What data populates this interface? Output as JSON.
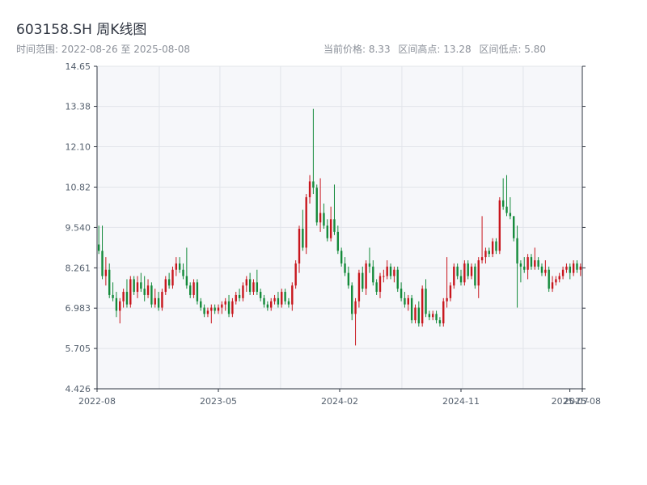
{
  "header": {
    "title": "603158.SH 周K线图",
    "range_text": "时间范围: 2022-08-26 至 2025-08-08",
    "current_price": "当前价格: 8.33",
    "range_high": "区间高点: 13.28",
    "range_low": "区间低点: 5.80"
  },
  "colors": {
    "up": "#c8161d",
    "down": "#138a3a",
    "plot_bg": "#f6f7fa",
    "grid": "#e1e4ea",
    "axis": "#2e3440"
  },
  "chart_data": {
    "type": "candlestick",
    "title": "603158.SH 周K线图",
    "xlabel": "",
    "ylabel": "",
    "ylim": [
      4.426,
      14.65
    ],
    "y_ticks": [
      "4.426",
      "5.705",
      "6.983",
      "8.261",
      "9.540",
      "10.82",
      "12.10",
      "13.38",
      "14.65"
    ],
    "x_ticks": [
      "2022-08",
      "2023-05",
      "2024-02",
      "2024-11",
      "2025-07",
      "2025-08"
    ],
    "x_tick_weeks": [
      0,
      39,
      78,
      117,
      152,
      156
    ],
    "grid": true,
    "start_date": "2022-08-26",
    "end_date": "2025-08-08",
    "summary": {
      "current": 8.33,
      "high": 13.28,
      "low": 5.8
    },
    "candles": [
      [
        9.0,
        9.6,
        8.7,
        8.8
      ],
      [
        8.8,
        9.6,
        7.9,
        8.0
      ],
      [
        8.0,
        8.6,
        7.7,
        8.2
      ],
      [
        8.2,
        8.4,
        7.3,
        7.4
      ],
      [
        7.4,
        7.8,
        7.2,
        7.3
      ],
      [
        7.3,
        7.5,
        6.7,
        6.9
      ],
      [
        6.9,
        7.3,
        6.5,
        7.2
      ],
      [
        7.2,
        7.6,
        7.0,
        7.5
      ],
      [
        7.5,
        7.9,
        7.0,
        7.1
      ],
      [
        7.1,
        8.0,
        7.0,
        7.9
      ],
      [
        7.9,
        8.0,
        7.4,
        7.5
      ],
      [
        7.5,
        8.0,
        7.3,
        7.8
      ],
      [
        7.8,
        8.1,
        7.5,
        7.6
      ],
      [
        7.6,
        8.0,
        7.2,
        7.4
      ],
      [
        7.4,
        7.9,
        7.3,
        7.7
      ],
      [
        7.7,
        7.8,
        7.0,
        7.1
      ],
      [
        7.1,
        7.6,
        7.0,
        7.3
      ],
      [
        7.3,
        7.5,
        6.9,
        7.0
      ],
      [
        7.0,
        7.6,
        6.9,
        7.5
      ],
      [
        7.5,
        8.0,
        7.4,
        7.9
      ],
      [
        7.9,
        8.1,
        7.6,
        7.7
      ],
      [
        7.7,
        8.3,
        7.6,
        8.2
      ],
      [
        8.2,
        8.6,
        8.0,
        8.4
      ],
      [
        8.4,
        8.6,
        8.1,
        8.2
      ],
      [
        8.2,
        8.4,
        7.9,
        8.0
      ],
      [
        8.0,
        8.9,
        7.6,
        7.7
      ],
      [
        7.7,
        7.8,
        7.3,
        7.4
      ],
      [
        7.4,
        7.9,
        7.3,
        7.8
      ],
      [
        7.8,
        7.9,
        7.1,
        7.2
      ],
      [
        7.2,
        7.3,
        6.9,
        7.0
      ],
      [
        7.0,
        7.1,
        6.7,
        6.8
      ],
      [
        6.8,
        7.0,
        6.7,
        6.9
      ],
      [
        6.9,
        7.1,
        6.5,
        7.0
      ],
      [
        7.0,
        7.1,
        6.8,
        6.9
      ],
      [
        6.9,
        7.1,
        6.8,
        7.0
      ],
      [
        7.0,
        7.2,
        6.8,
        7.1
      ],
      [
        7.1,
        7.3,
        6.9,
        7.2
      ],
      [
        7.2,
        7.4,
        6.7,
        6.8
      ],
      [
        6.8,
        7.3,
        6.7,
        7.2
      ],
      [
        7.2,
        7.5,
        7.1,
        7.4
      ],
      [
        7.4,
        7.6,
        7.2,
        7.3
      ],
      [
        7.3,
        7.8,
        7.2,
        7.7
      ],
      [
        7.7,
        8.0,
        7.5,
        7.9
      ],
      [
        7.9,
        8.1,
        7.4,
        7.5
      ],
      [
        7.5,
        7.9,
        7.4,
        7.8
      ],
      [
        7.8,
        8.2,
        7.4,
        7.5
      ],
      [
        7.5,
        7.6,
        7.2,
        7.3
      ],
      [
        7.3,
        7.4,
        7.0,
        7.1
      ],
      [
        7.1,
        7.2,
        6.9,
        7.0
      ],
      [
        7.0,
        7.3,
        6.9,
        7.2
      ],
      [
        7.2,
        7.4,
        7.1,
        7.3
      ],
      [
        7.3,
        7.5,
        7.0,
        7.1
      ],
      [
        7.1,
        7.6,
        7.0,
        7.5
      ],
      [
        7.5,
        7.6,
        7.1,
        7.2
      ],
      [
        7.2,
        7.3,
        7.0,
        7.1
      ],
      [
        7.1,
        7.8,
        6.9,
        7.7
      ],
      [
        7.7,
        8.5,
        7.6,
        8.4
      ],
      [
        8.4,
        9.6,
        8.1,
        9.5
      ],
      [
        9.5,
        10.1,
        8.8,
        8.9
      ],
      [
        8.9,
        10.6,
        8.7,
        10.5
      ],
      [
        10.5,
        11.2,
        10.3,
        11.0
      ],
      [
        11.0,
        13.3,
        10.6,
        10.8
      ],
      [
        10.8,
        10.9,
        9.6,
        9.7
      ],
      [
        9.7,
        11.1,
        9.4,
        10.0
      ],
      [
        10.0,
        10.3,
        9.5,
        9.6
      ],
      [
        9.6,
        9.8,
        9.1,
        9.2
      ],
      [
        9.2,
        10.2,
        9.1,
        9.8
      ],
      [
        9.8,
        10.9,
        9.3,
        9.4
      ],
      [
        9.4,
        9.6,
        8.7,
        8.8
      ],
      [
        8.8,
        8.9,
        8.3,
        8.4
      ],
      [
        8.4,
        8.6,
        8.0,
        8.1
      ],
      [
        8.1,
        8.3,
        7.6,
        7.7
      ],
      [
        7.7,
        7.8,
        6.6,
        6.8
      ],
      [
        6.8,
        7.3,
        5.8,
        7.2
      ],
      [
        7.2,
        8.2,
        7.0,
        8.1
      ],
      [
        8.1,
        8.3,
        7.5,
        7.6
      ],
      [
        7.6,
        8.5,
        7.4,
        8.4
      ],
      [
        8.4,
        8.9,
        8.1,
        8.3
      ],
      [
        8.3,
        8.5,
        7.7,
        7.8
      ],
      [
        7.8,
        7.9,
        7.4,
        7.5
      ],
      [
        7.5,
        8.1,
        7.3,
        8.0
      ],
      [
        8.0,
        8.2,
        7.8,
        8.0
      ],
      [
        8.0,
        8.5,
        7.9,
        8.3
      ],
      [
        8.3,
        8.4,
        7.9,
        8.0
      ],
      [
        8.0,
        8.3,
        7.8,
        8.2
      ],
      [
        8.2,
        8.3,
        7.5,
        7.6
      ],
      [
        7.6,
        7.8,
        7.2,
        7.3
      ],
      [
        7.3,
        7.5,
        7.0,
        7.1
      ],
      [
        7.1,
        7.4,
        6.9,
        7.3
      ],
      [
        7.3,
        7.4,
        6.5,
        6.6
      ],
      [
        6.6,
        7.1,
        6.5,
        7.0
      ],
      [
        7.0,
        7.2,
        6.4,
        6.5
      ],
      [
        6.5,
        7.7,
        6.4,
        7.6
      ],
      [
        7.6,
        7.9,
        6.7,
        6.8
      ],
      [
        6.8,
        6.9,
        6.6,
        6.7
      ],
      [
        6.7,
        6.9,
        6.6,
        6.8
      ],
      [
        6.8,
        6.9,
        6.5,
        6.6
      ],
      [
        6.6,
        6.7,
        6.4,
        6.5
      ],
      [
        6.5,
        7.3,
        6.4,
        7.2
      ],
      [
        7.2,
        8.6,
        7.0,
        7.3
      ],
      [
        7.3,
        7.8,
        7.2,
        7.7
      ],
      [
        7.7,
        8.4,
        7.6,
        8.3
      ],
      [
        8.3,
        8.4,
        7.9,
        8.0
      ],
      [
        8.0,
        8.2,
        7.7,
        7.8
      ],
      [
        7.8,
        8.5,
        7.7,
        8.4
      ],
      [
        8.4,
        8.5,
        7.9,
        8.0
      ],
      [
        8.0,
        8.4,
        7.9,
        8.3
      ],
      [
        8.3,
        8.4,
        7.6,
        7.7
      ],
      [
        7.7,
        8.6,
        7.3,
        8.5
      ],
      [
        8.5,
        9.9,
        8.4,
        8.6
      ],
      [
        8.6,
        8.9,
        8.4,
        8.8
      ],
      [
        8.8,
        8.9,
        8.6,
        8.7
      ],
      [
        8.7,
        9.2,
        8.6,
        9.1
      ],
      [
        9.1,
        9.2,
        8.7,
        8.8
      ],
      [
        8.8,
        10.5,
        8.7,
        10.4
      ],
      [
        10.4,
        11.1,
        10.1,
        10.2
      ],
      [
        10.2,
        11.2,
        9.9,
        10.0
      ],
      [
        10.0,
        10.5,
        9.8,
        9.9
      ],
      [
        9.9,
        9.9,
        9.1,
        9.2
      ],
      [
        9.2,
        9.6,
        7.0,
        8.4
      ],
      [
        8.4,
        8.5,
        7.8,
        8.3
      ],
      [
        8.3,
        8.6,
        8.1,
        8.2
      ],
      [
        8.2,
        8.7,
        7.9,
        8.6
      ],
      [
        8.6,
        8.7,
        8.2,
        8.3
      ],
      [
        8.3,
        8.9,
        8.2,
        8.5
      ],
      [
        8.5,
        8.6,
        8.2,
        8.3
      ],
      [
        8.3,
        8.4,
        8.0,
        8.1
      ],
      [
        8.1,
        8.5,
        8.0,
        8.2
      ],
      [
        8.2,
        8.3,
        7.5,
        7.6
      ],
      [
        7.6,
        8.0,
        7.5,
        7.8
      ],
      [
        7.8,
        8.0,
        7.7,
        7.9
      ],
      [
        7.9,
        8.1,
        7.8,
        8.0
      ],
      [
        8.0,
        8.3,
        7.9,
        8.2
      ],
      [
        8.2,
        8.4,
        8.1,
        8.3
      ],
      [
        8.3,
        8.4,
        7.9,
        8.1
      ],
      [
        8.1,
        8.5,
        8.0,
        8.4
      ],
      [
        8.4,
        8.5,
        8.1,
        8.2
      ],
      [
        8.2,
        8.4,
        8.0,
        8.3
      ]
    ]
  }
}
